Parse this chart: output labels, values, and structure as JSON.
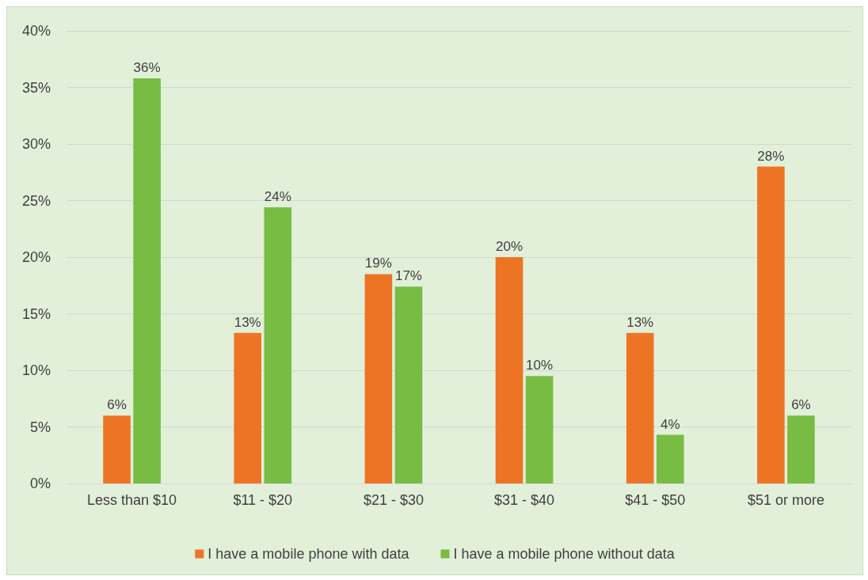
{
  "chart_data": {
    "type": "bar",
    "categories": [
      "Less than $10",
      "$11 - $20",
      "$21 - $30",
      "$31 - $40",
      "$41 - $50",
      "$51 or more"
    ],
    "series": [
      {
        "name": "I have a mobile phone with data",
        "color": "#ed7425",
        "values": [
          6,
          13.3,
          18.5,
          20,
          13.3,
          28
        ],
        "value_labels": [
          "6%",
          "13%",
          "19%",
          "20%",
          "13%",
          "28%"
        ]
      },
      {
        "name": "I have a mobile phone without data",
        "color": "#77bc43",
        "values": [
          35.8,
          24.4,
          17.4,
          9.5,
          4.3,
          6
        ],
        "value_labels": [
          "36%",
          "24%",
          "17%",
          "10%",
          "4%",
          "6%"
        ]
      }
    ],
    "ylim": [
      0,
      40
    ],
    "yticks": [
      {
        "value": 0,
        "label": "0%"
      },
      {
        "value": 5,
        "label": "5%"
      },
      {
        "value": 10,
        "label": "10%"
      },
      {
        "value": 15,
        "label": "15%"
      },
      {
        "value": 20,
        "label": "20%"
      },
      {
        "value": 25,
        "label": "25%"
      },
      {
        "value": 30,
        "label": "30%"
      },
      {
        "value": 35,
        "label": "35%"
      },
      {
        "value": 40,
        "label": "40%"
      }
    ],
    "grid": "y",
    "legend": "bottom"
  }
}
